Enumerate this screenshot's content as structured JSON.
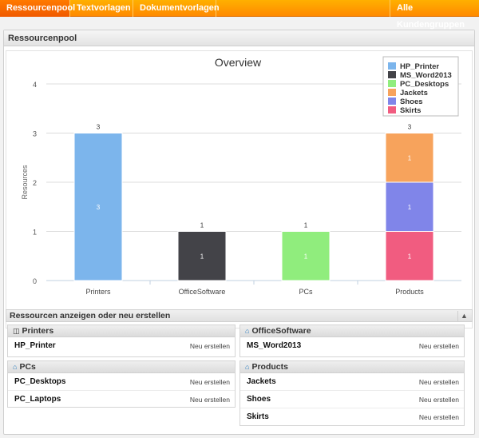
{
  "nav": {
    "tabs": [
      {
        "label": "Ressourcenpool"
      },
      {
        "label": "Textvorlagen"
      },
      {
        "label": "Dokumentvorlagen"
      }
    ],
    "right_tab": "Alle Kundengruppen"
  },
  "panel": {
    "title": "Ressourcenpool"
  },
  "chart_data": {
    "type": "bar",
    "stacked": true,
    "title": "Overview",
    "ylabel": "Resources",
    "ylim": [
      0,
      4
    ],
    "yticks": [
      "0",
      "1",
      "2",
      "3",
      "4"
    ],
    "categories": [
      "Printers",
      "OfficeSoftware",
      "PCs",
      "Products"
    ],
    "totals": [
      "3",
      "1",
      "1",
      "3"
    ],
    "series": [
      {
        "name": "HP_Printer",
        "color": "#7cb5ec",
        "values": [
          3,
          0,
          0,
          0
        ],
        "labels": [
          "3",
          "",
          "",
          ""
        ]
      },
      {
        "name": "MS_Word2013",
        "color": "#434348",
        "values": [
          0,
          1,
          0,
          0
        ],
        "labels": [
          "",
          "1",
          "",
          ""
        ]
      },
      {
        "name": "PC_Desktops",
        "color": "#90ed7d",
        "values": [
          0,
          0,
          1,
          0
        ],
        "labels": [
          "",
          "",
          "1",
          ""
        ]
      },
      {
        "name": "Jackets",
        "color": "#f7a35c",
        "values": [
          0,
          0,
          0,
          1
        ],
        "labels": [
          "",
          "",
          "",
          "1"
        ]
      },
      {
        "name": "Shoes",
        "color": "#8085e9",
        "values": [
          0,
          0,
          0,
          1
        ],
        "labels": [
          "",
          "",
          "",
          "1"
        ]
      },
      {
        "name": "Skirts",
        "color": "#f15c80",
        "values": [
          0,
          0,
          0,
          1
        ],
        "labels": [
          "",
          "",
          "",
          "1"
        ]
      }
    ],
    "stack_order_bottom_to_top": [
      "Skirts",
      "Shoes",
      "Jackets",
      "PC_Desktops",
      "MS_Word2013",
      "HP_Printer"
    ],
    "legend": "top-right",
    "grid": true
  },
  "section": {
    "title": "Ressourcen anzeigen oder neu erstellen",
    "collapse_icon": "chevron-up-icon"
  },
  "groups": {
    "printers": {
      "title": "Printers",
      "icon": "printer-icon",
      "rows": [
        {
          "name": "HP_Printer",
          "action": "Neu erstellen"
        }
      ]
    },
    "officesoftware": {
      "title": "OfficeSoftware",
      "icon": "home-icon",
      "rows": [
        {
          "name": "MS_Word2013",
          "action": "Neu erstellen"
        }
      ]
    },
    "pcs": {
      "title": "PCs",
      "icon": "home-icon",
      "rows": [
        {
          "name": "PC_Desktops",
          "action": "Neu erstellen"
        },
        {
          "name": "PC_Laptops",
          "action": "Neu erstellen"
        }
      ]
    },
    "products": {
      "title": "Products",
      "icon": "home-icon",
      "rows": [
        {
          "name": "Jackets",
          "action": "Neu erstellen"
        },
        {
          "name": "Shoes",
          "action": "Neu erstellen"
        },
        {
          "name": "Skirts",
          "action": "Neu erstellen"
        }
      ]
    }
  }
}
